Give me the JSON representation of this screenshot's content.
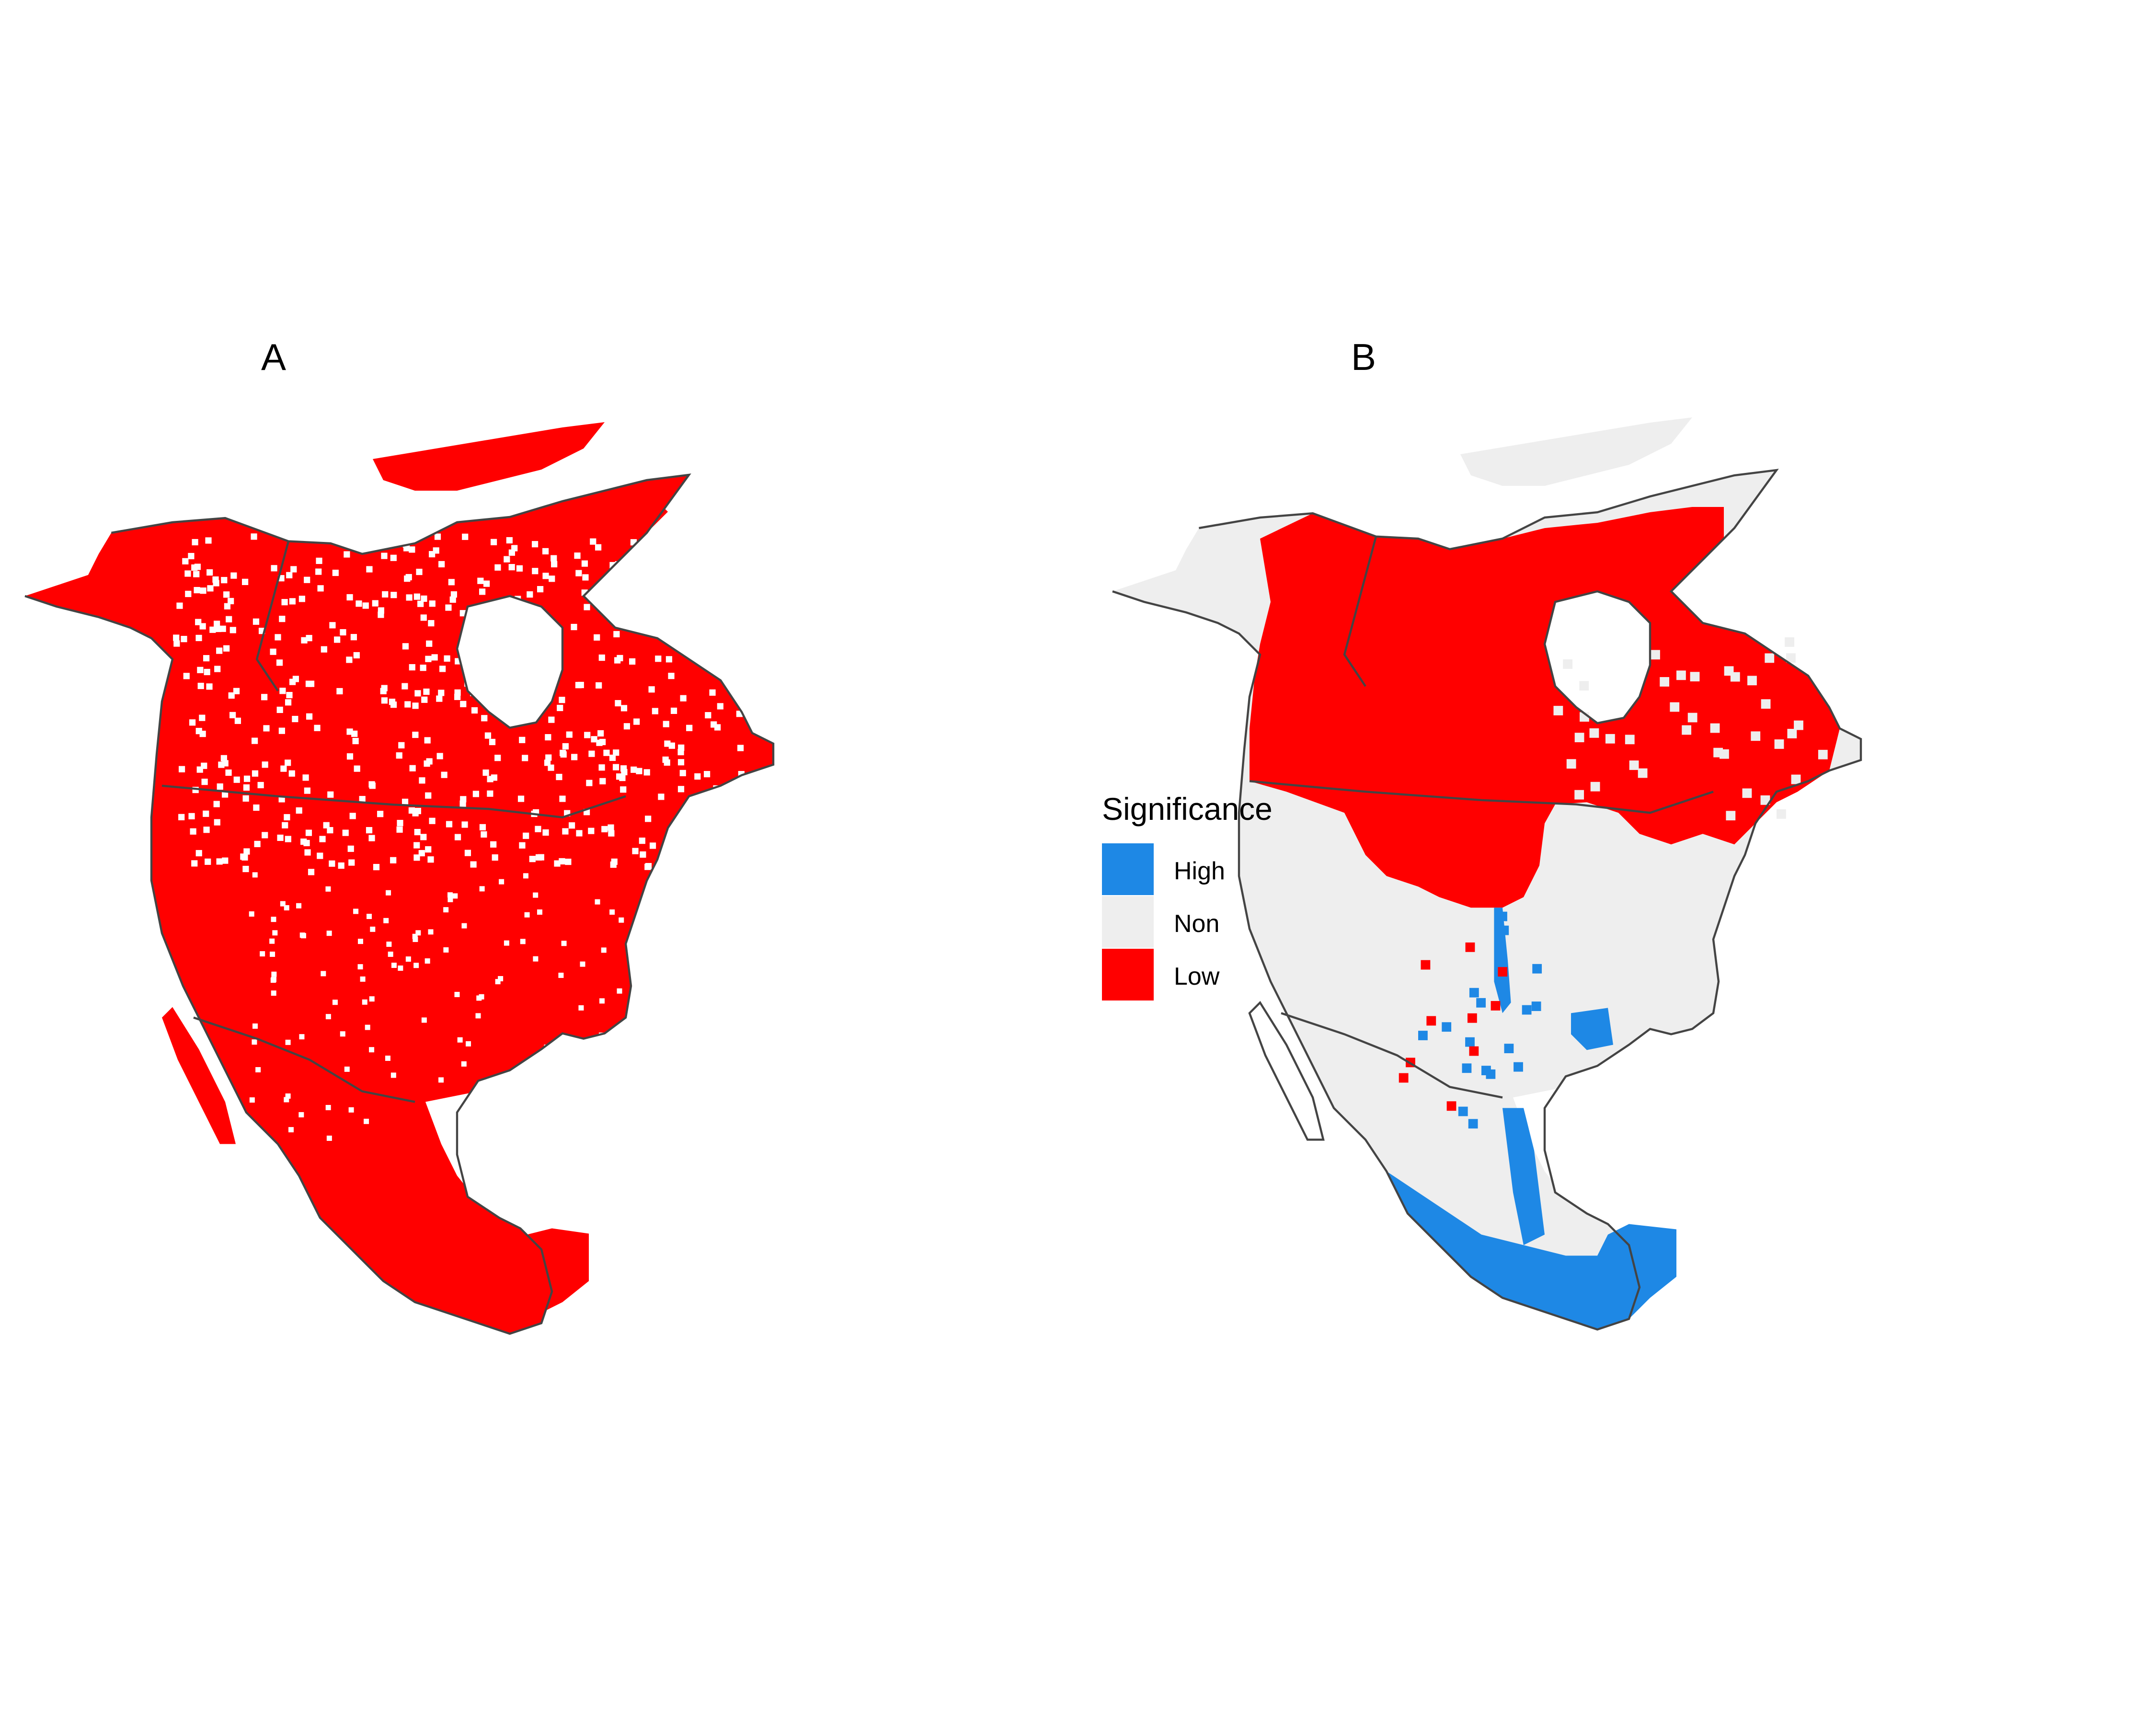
{
  "panels": [
    {
      "label": "A"
    },
    {
      "label": "B"
    }
  ],
  "legend": {
    "title": "Significance",
    "items": [
      {
        "label": "High",
        "color": "#1E88E5"
      },
      {
        "label": "Non",
        "color": "#EEEEEE"
      },
      {
        "label": "Low",
        "color": "#FF0000"
      }
    ]
  },
  "colors": {
    "high": "#1E88E5",
    "non": "#EEEEEE",
    "low": "#FF0000",
    "border": "#444444",
    "background": "#FFFFFF"
  },
  "region": "North America"
}
